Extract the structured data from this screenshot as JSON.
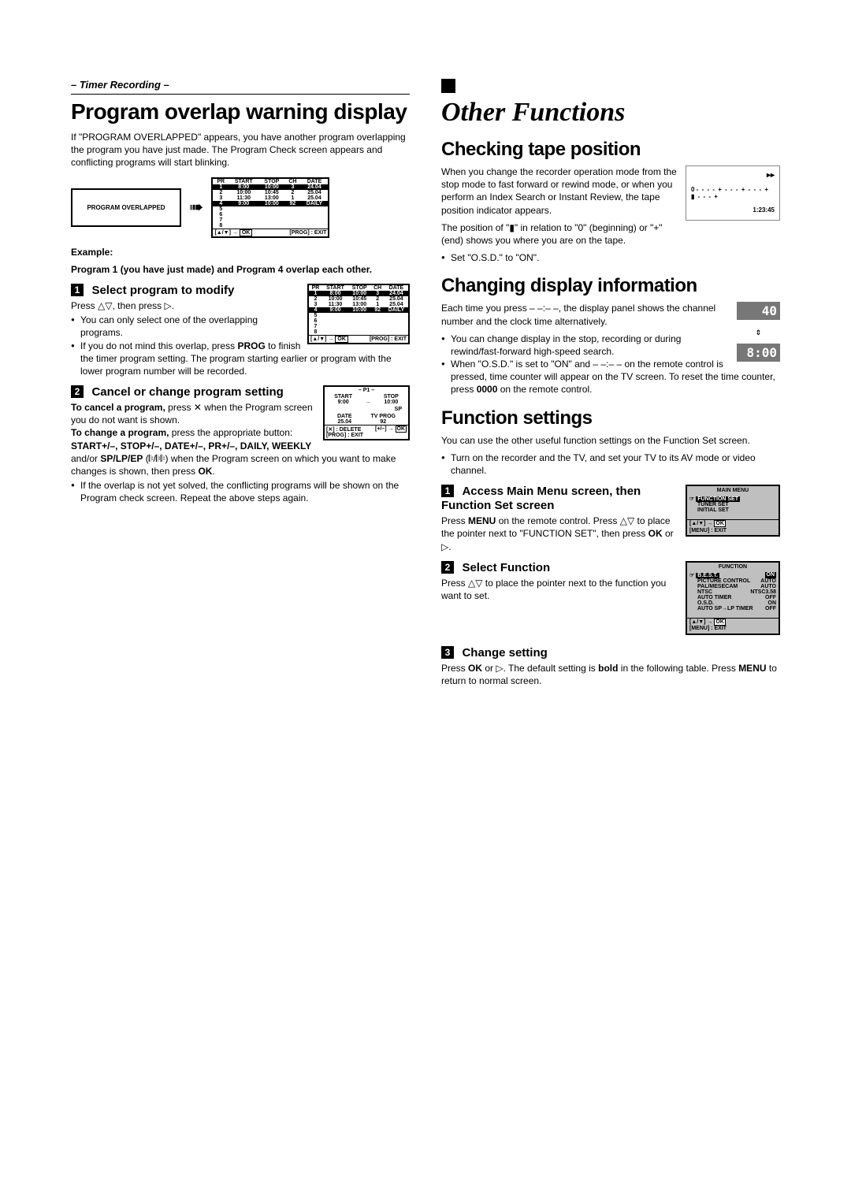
{
  "left": {
    "breadcrumb": "– Timer Recording –",
    "h1": "Program overlap warning display",
    "intro": "If \"PROGRAM OVERLAPPED\" appears, you have another program overlapping the program you have just made. The Program Check screen appears and conflicting programs will start blinking.",
    "overlap_label": "PROGRAM OVERLAPPED",
    "prog_table": {
      "headers": [
        "PR",
        "START",
        "STOP",
        "CH",
        "DATE"
      ],
      "rows": [
        [
          "1",
          "8:00",
          "10:00",
          "3",
          "24.04"
        ],
        [
          "2",
          "10:00",
          "10:45",
          "2",
          "25.04"
        ],
        [
          "3",
          "11:30",
          "13:00",
          "1",
          "25.04"
        ],
        [
          "4",
          "9:00",
          "10:00",
          "92",
          "DAILY"
        ],
        [
          "5",
          "",
          "",
          "",
          ""
        ],
        [
          "6",
          "",
          "",
          "",
          ""
        ],
        [
          "7",
          "",
          "",
          "",
          ""
        ],
        [
          "8",
          "",
          "",
          "",
          ""
        ]
      ],
      "hl_rows": [
        0,
        3
      ],
      "footer_left": "[▲/▼] →",
      "footer_ok": "OK",
      "footer_right": "[PROG] : EXIT"
    },
    "example_label": "Example:",
    "example_text": "Program 1 (you have just made) and Program 4 overlap each other.",
    "step1": {
      "title": "Select program to modify",
      "body1": "Press △▽, then press ▷.",
      "b1": "You can only select one of the overlapping programs.",
      "b2_a": "If you do not mind this overlap, press ",
      "b2_prog": "PROG",
      "b2_b": " to finish the timer program setting. The program starting earlier or program with the lower program number will be recorded."
    },
    "step2": {
      "title": "Cancel or change program setting",
      "l1a": "To cancel a program,",
      "l1b": " press ✕ when the Program screen you do not want is shown.",
      "l2a": "To change a program,",
      "l2b": " press the appropriate button: ",
      "btns": "START+/–, STOP+/–, DATE+/–, PR+/–, DAILY, WEEKLY",
      "l2c": " and/or ",
      "sp": "SP/LP/EP",
      "l2d": " (𝄆/𝄆𝄆) when the Program screen on which you want to make changes is shown, then press ",
      "ok": "OK",
      "l2e": ".",
      "b1": "If the overlap is not yet solved, the conflicting programs will be shown on the Program check screen. Repeat the above steps again.",
      "p1_screen": {
        "title": "– P1 –",
        "start_l": "START",
        "start_v": "9:00",
        "stop_l": "STOP",
        "stop_v": "10:00",
        "sp": "SP",
        "date_l": "DATE",
        "date_v": "25.04",
        "tv_l": "TV PROG",
        "tv_v": "92",
        "f1": "[✕] : DELETE",
        "f2": "[+/–] →",
        "f2b": "OK",
        "f3": "[PROG] : EXIT"
      }
    }
  },
  "right": {
    "h1": "Other Functions",
    "s1": {
      "h": "Checking tape position",
      "p1": "When you change the recorder operation mode from the stop mode to fast forward or rewind mode, or when you perform an Index Search or Instant Review, the tape position indicator appears.",
      "p2a": "The position of \"",
      "p2mark": "▮",
      "p2b": "\" in relation to \"0\" (beginning) or \"+\" (end) shows you where you are on the tape.",
      "b1": "Set \"O.S.D.\" to \"ON\".",
      "tape": {
        "sym": "▸▸",
        "zero": "0",
        "dashes": "- - - - + - - - + - - - + ▮ - - - +",
        "time": "1:23:45"
      }
    },
    "s2": {
      "h": "Changing display information",
      "p1": "Each time you press – –:– –, the display panel shows the channel number and the clock time alternatively.",
      "b1": "You can change display in the stop, recording or during rewind/fast-forward high-speed search.",
      "b2a": "When \"O.S.D.\" is set to \"ON\" and – –:– – on the remote control is pressed, time counter will appear on the TV screen. To reset the time counter, press ",
      "b2b": "0000",
      "b2c": " on the remote control.",
      "disp1": "40",
      "disp2": "8:00"
    },
    "s3": {
      "h": "Function settings",
      "p1": "You can use the other useful function settings on the Function Set screen.",
      "b1": "Turn on the recorder and the TV, and set your TV to its AV mode or video channel.",
      "step1": {
        "title": "Access Main Menu screen, then Function Set screen",
        "body_a": "Press ",
        "menu": "MENU",
        "body_b": " on the remote control. Press △▽ to place the pointer next to \"FUNCTION SET\", then press ",
        "ok": "OK",
        "body_c": " or ▷.",
        "screen": {
          "title": "MAIN MENU",
          "i1": "FUNCTION SET",
          "i2": "TUNER SET",
          "i3": "INITIAL SET",
          "f1": "[▲/▼] →",
          "f1b": "OK",
          "f2": "[MENU] : EXIT"
        }
      },
      "step2": {
        "title": "Select Function",
        "body": "Press △▽ to place the pointer next to the function you want to set.",
        "screen": {
          "title": "FUNCTION",
          "rows": [
            [
              "B.E.S.T.",
              "ON"
            ],
            [
              "PICTURE CONTROL",
              "AUTO"
            ],
            [
              "PAL/MESECAM",
              "AUTO"
            ],
            [
              "NTSC",
              "NTSC3.58"
            ],
            [
              "AUTO TIMER",
              "OFF"
            ],
            [
              "O.S.D.",
              "ON"
            ],
            [
              "AUTO SP→LP TIMER",
              "OFF"
            ]
          ],
          "f1": "[▲/▼] →",
          "f1b": "OK",
          "f2": "[MENU] : EXIT"
        }
      },
      "step3": {
        "title": "Change setting",
        "body_a": "Press ",
        "ok": "OK",
        "body_b": " or ▷. The default setting is ",
        "bold": "bold",
        "body_c": " in the following table. Press ",
        "menu": "MENU",
        "body_d": " to return to normal screen."
      }
    }
  }
}
